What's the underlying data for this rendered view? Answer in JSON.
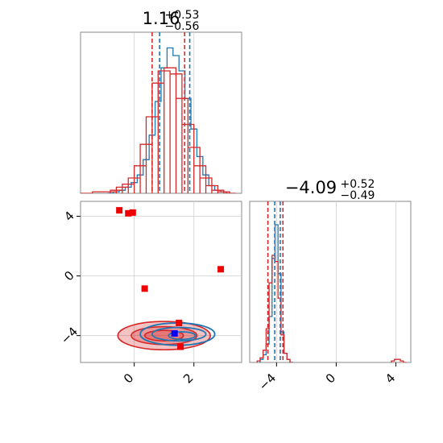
{
  "chart_data": {
    "type": "corner",
    "param1": {
      "title_main": "1.16",
      "title_sup": "+0.53",
      "title_sub": "−0.56",
      "range": [
        -1.8,
        3.6
      ],
      "ticks": [
        0,
        2
      ],
      "tick_labels": [
        "0",
        "2"
      ]
    },
    "param2": {
      "title_main": "−4.09",
      "title_sup": "+0.52",
      "title_sub": "−0.49",
      "range": [
        -5.8,
        5.0
      ],
      "ticks": [
        -4,
        0,
        4
      ],
      "tick_labels": [
        "−4",
        "0",
        "4"
      ]
    },
    "grid": true,
    "series": [
      {
        "color": "#1f77b4",
        "quantile_lines_p1": [
          0.85,
          1.86
        ],
        "quantile_lines_p2": [
          -4.12,
          -3.75
        ],
        "hist_p1": {
          "x": [
            -0.8,
            -0.6,
            -0.4,
            -0.2,
            0.0,
            0.2,
            0.4,
            0.6,
            0.8,
            1.0,
            1.2,
            1.4,
            1.6,
            1.8,
            2.0,
            2.2,
            2.4,
            2.6,
            2.8,
            3.0
          ],
          "y": [
            0.0,
            0.01,
            0.02,
            0.04,
            0.07,
            0.12,
            0.22,
            0.38,
            0.6,
            0.82,
            0.95,
            0.9,
            0.8,
            0.62,
            0.42,
            0.24,
            0.12,
            0.05,
            0.02,
            0.01
          ]
        },
        "hist_p2": {
          "x": [
            -5.0,
            -4.8,
            -4.6,
            -4.4,
            -4.2,
            -4.0,
            -3.8,
            -3.6,
            -3.4,
            -3.2,
            -3.0
          ],
          "y": [
            0.02,
            0.05,
            0.12,
            0.3,
            0.68,
            0.9,
            0.58,
            0.2,
            0.06,
            0.02,
            0.0
          ]
        },
        "contours": [
          {
            "cx": 1.6,
            "cy": -4.0,
            "rx": 0.45,
            "ry": 0.25
          },
          {
            "cx": 1.5,
            "cy": -3.9,
            "rx": 0.9,
            "ry": 0.45
          },
          {
            "cx": 1.45,
            "cy": -3.9,
            "rx": 1.25,
            "ry": 0.75
          }
        ],
        "truth_markers": [
          {
            "x": 1.35,
            "y": -3.85
          }
        ]
      },
      {
        "color": "#d62728",
        "quantile_lines_p1": [
          0.6,
          1.69
        ],
        "quantile_lines_p2": [
          -4.58,
          -3.57
        ],
        "hist_p1": {
          "x": [
            -1.6,
            -1.2,
            -0.8,
            -0.6,
            -0.4,
            -0.2,
            0.0,
            0.2,
            0.4,
            0.6,
            0.8,
            1.0,
            1.2,
            1.4,
            1.6,
            1.8,
            2.0,
            2.2,
            2.4,
            2.6,
            2.8,
            3.0,
            3.2
          ],
          "y": [
            0.0,
            0.01,
            0.01,
            0.02,
            0.04,
            0.06,
            0.1,
            0.18,
            0.32,
            0.5,
            0.72,
            0.8,
            0.82,
            0.78,
            0.62,
            0.45,
            0.3,
            0.18,
            0.1,
            0.05,
            0.02,
            0.01,
            0.0
          ]
        },
        "hist_p2": {
          "x": [
            -5.2,
            -5.0,
            -4.8,
            -4.6,
            -4.4,
            -4.2,
            -4.0,
            -3.8,
            -3.6,
            -3.4,
            -3.2,
            -3.0,
            3.8,
            4.0,
            4.2,
            4.4,
            4.6
          ],
          "y": [
            0.01,
            0.03,
            0.08,
            0.22,
            0.52,
            0.7,
            0.66,
            0.42,
            0.18,
            0.06,
            0.02,
            0.0,
            0.01,
            0.02,
            0.02,
            0.01,
            0.0
          ]
        },
        "contours": [
          {
            "cx": 1.0,
            "cy": -4.0,
            "rx": 0.65,
            "ry": 0.35
          },
          {
            "cx": 1.0,
            "cy": -4.0,
            "rx": 1.1,
            "ry": 0.6
          },
          {
            "cx": 1.0,
            "cy": -4.0,
            "rx": 1.55,
            "ry": 0.95
          }
        ],
        "truth_markers": [
          {
            "x": -0.5,
            "y": 4.4
          },
          {
            "x": -0.2,
            "y": 4.2
          },
          {
            "x": -0.05,
            "y": 4.25
          },
          {
            "x": 0.35,
            "y": -0.85
          },
          {
            "x": 2.9,
            "y": 0.45
          },
          {
            "x": 1.5,
            "y": -3.15
          },
          {
            "x": 1.55,
            "y": -4.75
          }
        ]
      }
    ]
  }
}
